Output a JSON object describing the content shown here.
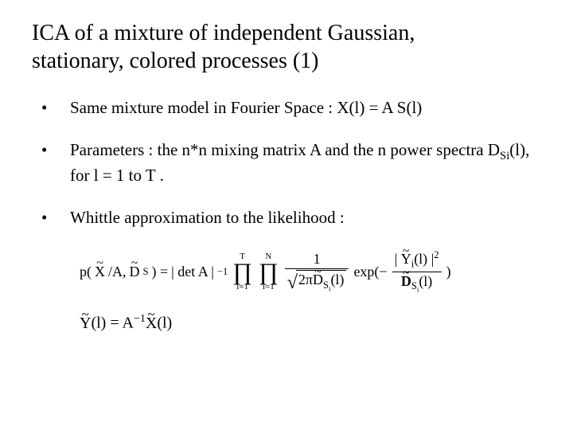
{
  "title_line1": "ICA of a mixture of independent Gaussian,",
  "title_line2": "stationary, colored processes (1)",
  "bullet1": "Same mixture model in Fourier Space : X(l) = A S(l)",
  "bullet2_a": "Parameters : the n*n mixing matrix A and the n power spectra D",
  "bullet2_sub": "Si",
  "bullet2_b": "(l), for l = 1 to T .",
  "bullet3": "Whittle approximation to the likelihood :",
  "f": {
    "lhs_p": "p(",
    "lhs_X": "X",
    "lhs_slashA": "/A, ",
    "lhs_D": "D",
    "lhs_Dsub": "S",
    "lhs_close": ") =",
    "det": "| det A |",
    "det_exp": "−1",
    "prod1_lo": "l=1",
    "prod1_hi": "T",
    "prod2_lo": "i=1",
    "prod2_hi": "N",
    "frac1_num": "1",
    "sqrt_2pi": "2π",
    "sqrt_D": "D",
    "sqrt_Dsub": "S",
    "sqrt_Dsubi": "i",
    "sqrt_arg": "(l)",
    "exp": "exp(−",
    "Y": "Y",
    "Y_sub": "i",
    "Y_arg": "(l) |",
    "Y_exp": "2",
    "den_D": "D",
    "den_Dsub": "S",
    "den_Dsubi": "i",
    "den_arg": "(l)",
    "close": ")"
  },
  "f2": {
    "Y": "Y",
    "Yarg": "(l) = A",
    "exp": "−1",
    "X": "X",
    "Xarg": "(l)"
  }
}
